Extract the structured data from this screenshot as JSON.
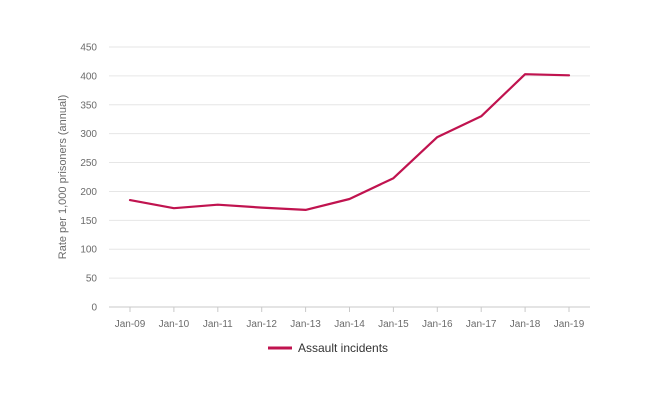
{
  "chart_data": {
    "type": "line",
    "title": "",
    "xlabel": "",
    "ylabel": "Rate per 1,000 prisoners (annual)",
    "categories": [
      "Jan-09",
      "Jan-10",
      "Jan-11",
      "Jan-12",
      "Jan-13",
      "Jan-14",
      "Jan-15",
      "Jan-16",
      "Jan-17",
      "Jan-18",
      "Jan-19"
    ],
    "ylim": [
      0,
      450
    ],
    "yticks": [
      0,
      50,
      100,
      150,
      200,
      250,
      300,
      350,
      400,
      450
    ],
    "grid": "horizontal",
    "legend_position": "bottom",
    "series": [
      {
        "name": "Assault incidents",
        "color": "#c0134f",
        "values": [
          185,
          171,
          177,
          172,
          168,
          187,
          223,
          294,
          330,
          403,
          401
        ]
      }
    ]
  },
  "colors": {
    "gridline": "#e6e6e6",
    "axis": "#c9c9c9",
    "text": "#6b6b6b"
  }
}
